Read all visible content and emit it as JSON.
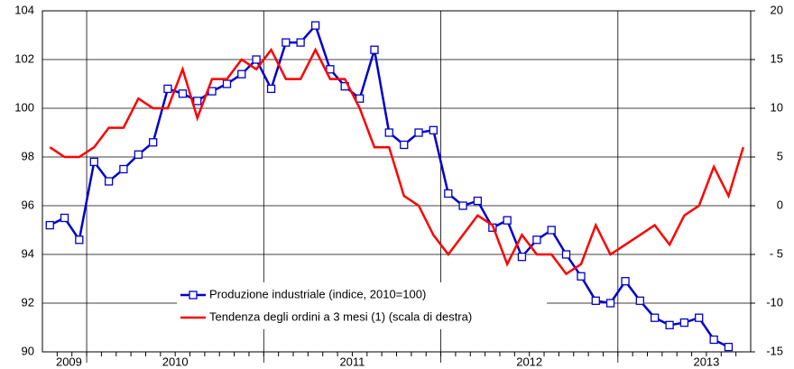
{
  "chart_data": {
    "type": "line",
    "x": [
      2009.792,
      2009.875,
      2009.958,
      2010.042,
      2010.125,
      2010.208,
      2010.292,
      2010.375,
      2010.458,
      2010.542,
      2010.625,
      2010.708,
      2010.792,
      2010.875,
      2010.958,
      2011.042,
      2011.125,
      2011.208,
      2011.292,
      2011.375,
      2011.458,
      2011.542,
      2011.625,
      2011.708,
      2011.792,
      2011.875,
      2011.958,
      2012.042,
      2012.125,
      2012.208,
      2012.292,
      2012.375,
      2012.458,
      2012.542,
      2012.625,
      2012.708,
      2012.792,
      2012.875,
      2012.958,
      2013.042,
      2013.125,
      2013.208,
      2013.292,
      2013.375,
      2013.458,
      2013.542,
      2013.625,
      2013.708
    ],
    "xlim": [
      2009.75,
      2013.75
    ],
    "xticks": [
      {
        "value": 2009.9,
        "label": "2009"
      },
      {
        "value": 2010.5,
        "label": "2010"
      },
      {
        "value": 2011.5,
        "label": "2011"
      },
      {
        "value": 2012.5,
        "label": "2012"
      },
      {
        "value": 2013.5,
        "label": "2013"
      }
    ],
    "xgrid": [
      2010,
      2011,
      2012,
      2013
    ],
    "ylim": [
      90,
      104
    ],
    "yticks": [
      90,
      92,
      94,
      96,
      98,
      100,
      102,
      104
    ],
    "y2lim": [
      -15,
      20
    ],
    "y2ticks": [
      -15,
      -10,
      {
        "value": -5,
        "label": "- 5"
      },
      0,
      5,
      10,
      15,
      20
    ],
    "grid": true,
    "series": [
      {
        "name": "Produzione industriale (indice, 2010=100)",
        "color": "#0000cc",
        "marker": "square",
        "values": [
          95.2,
          95.5,
          94.6,
          97.8,
          97.0,
          97.5,
          98.1,
          98.6,
          100.8,
          100.6,
          100.3,
          100.7,
          101.0,
          101.4,
          102.0,
          100.8,
          102.7,
          102.7,
          103.4,
          101.6,
          100.9,
          100.4,
          102.4,
          99.0,
          98.5,
          99.0,
          99.1,
          96.5,
          96.0,
          96.2,
          95.1,
          95.4,
          93.9,
          94.6,
          95.0,
          94.0,
          93.1,
          92.1,
          92.0,
          92.9,
          92.1,
          91.4,
          91.1,
          91.2,
          91.4,
          90.5,
          90.2,
          null
        ]
      },
      {
        "name": "Tendenza degli ordini a 3 mesi (1) (scala di destra)",
        "color": "#ff0000",
        "axis": "y2",
        "values": [
          6,
          5,
          5,
          6,
          8,
          8,
          11,
          10,
          10,
          14,
          9,
          13,
          13,
          15,
          14,
          16,
          13,
          13,
          16,
          13,
          13,
          10,
          6,
          6,
          1,
          0,
          -3,
          -5,
          -3,
          -1,
          -2,
          -6,
          -3,
          -5,
          -5,
          -7,
          -6,
          -2,
          -5,
          -4,
          -3,
          -2,
          -4,
          -1,
          0,
          4,
          1,
          6
        ]
      }
    ]
  }
}
